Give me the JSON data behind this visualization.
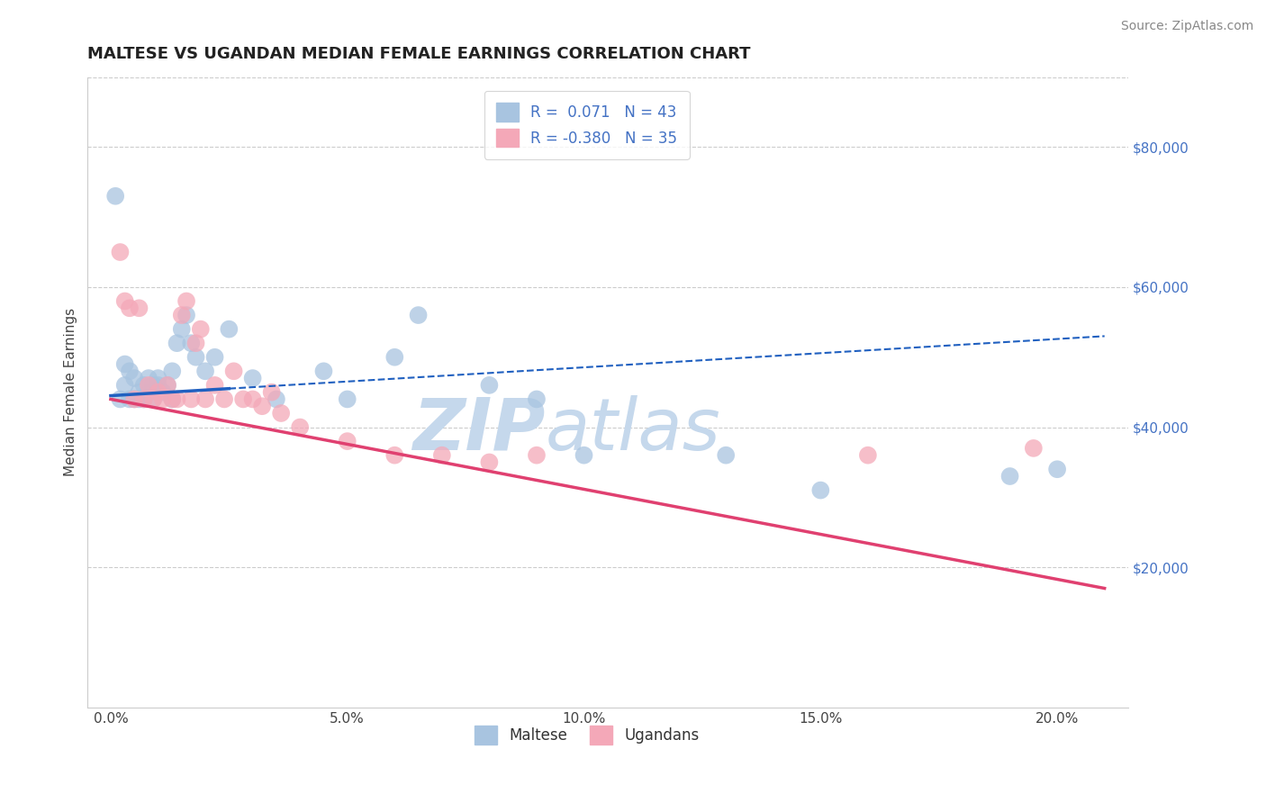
{
  "title": "MALTESE VS UGANDAN MEDIAN FEMALE EARNINGS CORRELATION CHART",
  "source_text": "Source: ZipAtlas.com",
  "ylabel": "Median Female Earnings",
  "xlabel_ticks": [
    "0.0%",
    "5.0%",
    "10.0%",
    "15.0%",
    "20.0%"
  ],
  "xlabel_vals": [
    0.0,
    0.05,
    0.1,
    0.15,
    0.2
  ],
  "ylim": [
    0,
    90000
  ],
  "xlim": [
    -0.005,
    0.215
  ],
  "yticks": [
    20000,
    40000,
    60000,
    80000
  ],
  "ytick_labels": [
    "$20,000",
    "$40,000",
    "$60,000",
    "$80,000"
  ],
  "maltese_color": "#a8c4e0",
  "ugandan_color": "#f4a8b8",
  "maltese_line_color": "#2060c0",
  "ugandan_line_color": "#e04070",
  "watermark_zip": "ZIP",
  "watermark_atlas": "atlas",
  "watermark_color_zip": "#c5d8ec",
  "watermark_color_atlas": "#c5d8ec",
  "maltese_x": [
    0.001,
    0.002,
    0.003,
    0.003,
    0.004,
    0.004,
    0.005,
    0.005,
    0.006,
    0.006,
    0.007,
    0.007,
    0.008,
    0.008,
    0.009,
    0.009,
    0.01,
    0.01,
    0.011,
    0.012,
    0.013,
    0.013,
    0.014,
    0.015,
    0.016,
    0.017,
    0.018,
    0.02,
    0.022,
    0.025,
    0.03,
    0.035,
    0.045,
    0.05,
    0.06,
    0.065,
    0.08,
    0.09,
    0.1,
    0.13,
    0.15,
    0.19,
    0.2
  ],
  "maltese_y": [
    73000,
    44000,
    46000,
    49000,
    44000,
    48000,
    44000,
    47000,
    45000,
    44000,
    46000,
    44000,
    47000,
    45000,
    46000,
    44000,
    47000,
    46000,
    45000,
    46000,
    44000,
    48000,
    52000,
    54000,
    56000,
    52000,
    50000,
    48000,
    50000,
    54000,
    47000,
    44000,
    48000,
    44000,
    50000,
    56000,
    46000,
    44000,
    36000,
    36000,
    31000,
    33000,
    34000
  ],
  "ugandan_x": [
    0.002,
    0.003,
    0.004,
    0.005,
    0.006,
    0.007,
    0.008,
    0.009,
    0.01,
    0.011,
    0.012,
    0.013,
    0.014,
    0.015,
    0.016,
    0.017,
    0.018,
    0.019,
    0.02,
    0.022,
    0.024,
    0.026,
    0.028,
    0.03,
    0.032,
    0.034,
    0.036,
    0.04,
    0.05,
    0.06,
    0.07,
    0.08,
    0.09,
    0.16,
    0.195
  ],
  "ugandan_y": [
    65000,
    58000,
    57000,
    44000,
    57000,
    44000,
    46000,
    44000,
    45000,
    44000,
    46000,
    44000,
    44000,
    56000,
    58000,
    44000,
    52000,
    54000,
    44000,
    46000,
    44000,
    48000,
    44000,
    44000,
    43000,
    45000,
    42000,
    40000,
    38000,
    36000,
    36000,
    35000,
    36000,
    36000,
    37000
  ],
  "trend_blue_x0": 0.0,
  "trend_blue_y0": 44500,
  "trend_blue_x1": 0.21,
  "trend_blue_y1": 53000,
  "trend_blue_solid_end": 0.025,
  "trend_pink_x0": 0.0,
  "trend_pink_y0": 44000,
  "trend_pink_x1": 0.21,
  "trend_pink_y1": 17000,
  "trend_pink_solid_end": 0.21,
  "title_fontsize": 13,
  "axis_fontsize": 11,
  "tick_fontsize": 11,
  "legend_fontsize": 12,
  "source_fontsize": 10
}
